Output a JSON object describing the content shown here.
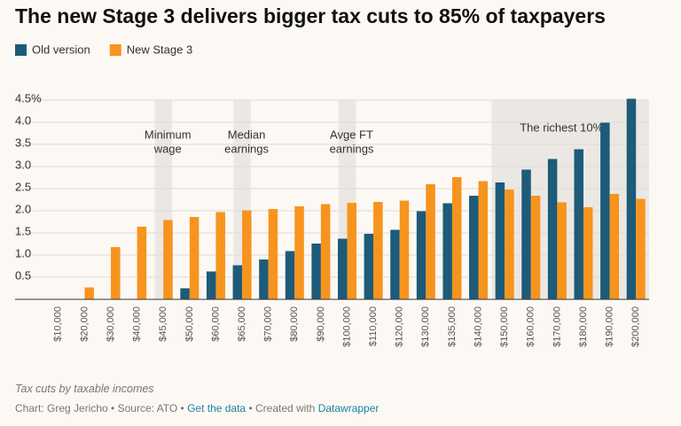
{
  "chart_data": {
    "type": "bar",
    "title": "The new Stage 3 delivers bigger tax cuts to 85% of taxpayers",
    "categories": [
      "$10,000",
      "$20,000",
      "$30,000",
      "$40,000",
      "$45,000",
      "$50,000",
      "$60,000",
      "$65,000",
      "$70,000",
      "$80,000",
      "$90,000",
      "$100,000",
      "$110,000",
      "$120,000",
      "$130,000",
      "$135,000",
      "$140,000",
      "$150,000",
      "$160,000",
      "$170,000",
      "$180,000",
      "$190,000",
      "$200,000"
    ],
    "series": [
      {
        "name": "Old version",
        "color": "#1d5b79",
        "values": [
          0,
          0,
          0,
          0,
          0,
          0.25,
          0.63,
          0.77,
          0.9,
          1.09,
          1.26,
          1.37,
          1.48,
          1.57,
          1.99,
          2.17,
          2.34,
          2.64,
          2.93,
          3.17,
          3.39,
          3.99,
          4.53
        ]
      },
      {
        "name": "New Stage 3",
        "color": "#f7941d",
        "values": [
          0,
          0.27,
          1.18,
          1.64,
          1.79,
          1.86,
          1.97,
          2.01,
          2.04,
          2.1,
          2.15,
          2.18,
          2.2,
          2.23,
          2.6,
          2.76,
          2.67,
          2.48,
          2.34,
          2.19,
          2.08,
          2.38,
          2.27
        ]
      }
    ],
    "ylim": [
      0,
      4.5
    ],
    "yticks": [
      0.5,
      {
        "value": 1,
        "label": "1.0"
      },
      1.5,
      {
        "value": 2,
        "label": "2.0"
      },
      2.5,
      {
        "value": 3,
        "label": "3.0"
      },
      3.5,
      {
        "value": 4,
        "label": "4.0"
      },
      {
        "value": 4.5,
        "label": "4.5%"
      }
    ],
    "grid": true,
    "highlights": [
      {
        "from": "$45,000",
        "to": "$45,000",
        "label": [
          "Minimum",
          "wage"
        ]
      },
      {
        "from": "$65,000",
        "to": "$65,000",
        "label": [
          "Median",
          "earnings"
        ]
      },
      {
        "from": "$100,000",
        "to": "$100,000",
        "label": [
          "Avge FT",
          "earnings"
        ]
      },
      {
        "from": "$150,000",
        "to": "$200,000",
        "label": [
          "The richest 10%"
        ]
      }
    ],
    "description": "Tax cuts by taxable incomes",
    "credit": [
      "Chart: Greg Jericho",
      "Source: ATO",
      "Get the data",
      "Created with",
      "Datawrapper"
    ]
  }
}
